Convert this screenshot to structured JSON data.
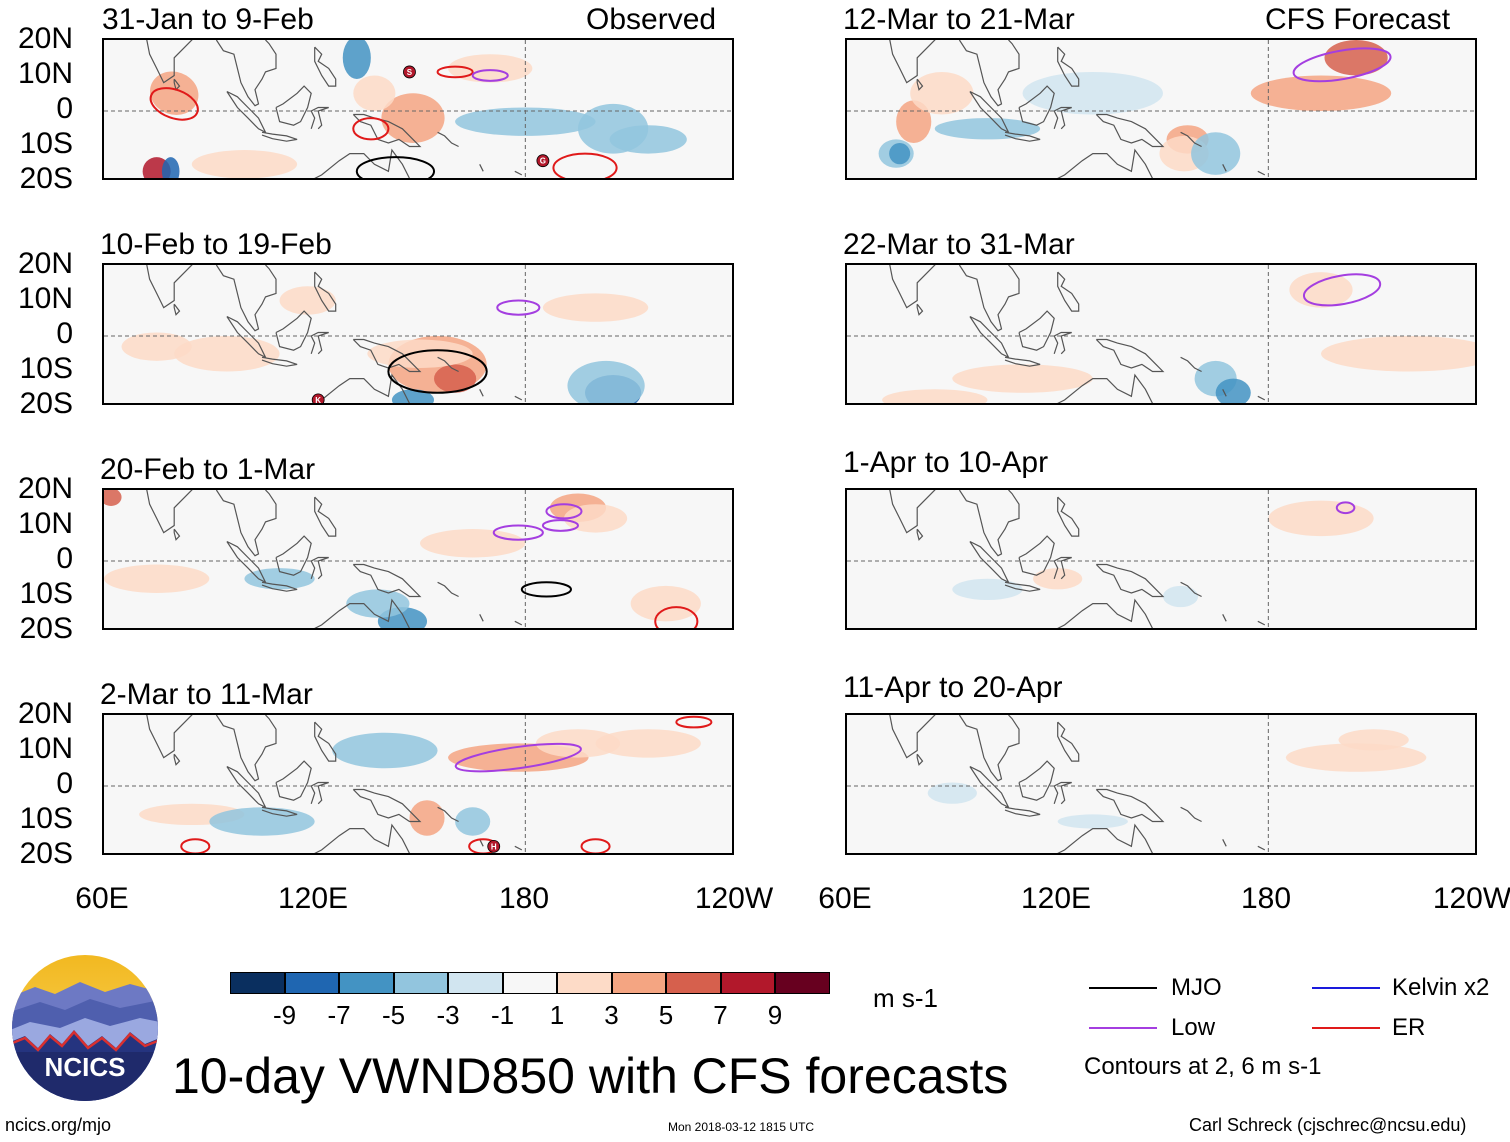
{
  "chart_data": {
    "type": "heatmap",
    "title": "10-day VWND850 with CFS forecasts",
    "units": "m s-1",
    "column_headers": [
      "Observed",
      "CFS Forecast"
    ],
    "lat_ticks": [
      "20N",
      "10N",
      "0",
      "10S",
      "20S"
    ],
    "lon_ticks": [
      "60E",
      "120E",
      "180",
      "120W"
    ],
    "lon_range_deg": [
      60,
      240
    ],
    "lat_range_deg": [
      -20,
      20
    ],
    "colorbar": {
      "levels": [
        "-9",
        "-7",
        "-5",
        "-3",
        "-1",
        "1",
        "3",
        "5",
        "7",
        "9"
      ],
      "colors": [
        "#0a2f5f",
        "#1f66b1",
        "#4393c3",
        "#92c5de",
        "#d1e5f0",
        "#f7f7f7",
        "#fddbc7",
        "#f4a582",
        "#d6604d",
        "#b2182b",
        "#67001f"
      ]
    },
    "panels": [
      {
        "label": "31-Jan to 9-Feb",
        "kind": "observed"
      },
      {
        "label": "10-Feb to 19-Feb",
        "kind": "observed"
      },
      {
        "label": "20-Feb to 1-Mar",
        "kind": "observed"
      },
      {
        "label": "2-Mar to 11-Mar",
        "kind": "observed"
      },
      {
        "label": "12-Mar to 21-Mar",
        "kind": "forecast"
      },
      {
        "label": "22-Mar to 31-Mar",
        "kind": "forecast"
      },
      {
        "label": "1-Apr to 10-Apr",
        "kind": "forecast"
      },
      {
        "label": "11-Apr to 20-Apr",
        "kind": "forecast"
      }
    ],
    "legend": [
      {
        "name": "MJO",
        "color": "#000000"
      },
      {
        "name": "Kelvin x2",
        "color": "#1a1adc"
      },
      {
        "name": "Low",
        "color": "#a43ee0"
      },
      {
        "name": "ER",
        "color": "#e01a1a"
      }
    ],
    "contour_note": "Contours at 2, 6 m s-1",
    "storm_markers": [
      "S",
      "G",
      "K",
      "H"
    ]
  },
  "footer": {
    "left": "ncics.org/mjo",
    "center": "Mon 2018-03-12 1815 UTC",
    "right": "Carl Schreck (cjschrec@ncsu.edu)"
  },
  "logo": {
    "text": "NCICS"
  }
}
